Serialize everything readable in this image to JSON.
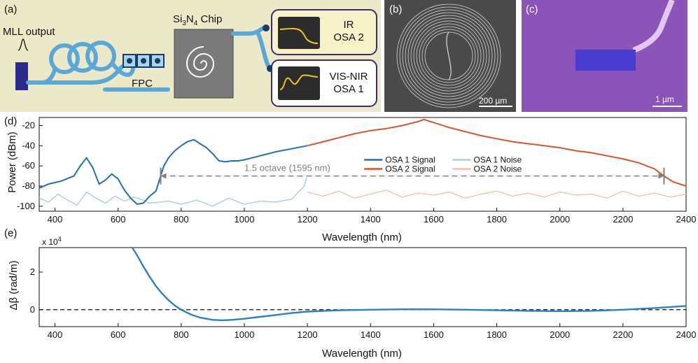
{
  "panels": {
    "a": {
      "label": "(a)",
      "mll_label": "MLL output",
      "fpc_label": "FPC",
      "chip_label_main": "Si",
      "chip_label_sub1": "3",
      "chip_label_mid": "N",
      "chip_label_sub2": "4",
      "chip_label_end": " Chip",
      "osa2_line1": "IR",
      "osa2_line2": "OSA 2",
      "osa1_line1": "VIS-NIR",
      "osa1_line2": "OSA 1"
    },
    "b": {
      "label": "(b)",
      "scalebar": "200 µm"
    },
    "c": {
      "label": "(c)",
      "scalebar": "1 µm"
    },
    "d": {
      "label": "(d)"
    },
    "e": {
      "label": "(e)"
    }
  },
  "colors": {
    "setup_bg": "#ece9c8",
    "fiber": "#5aa8d8",
    "mll_block": "#2a2a8c",
    "osa_screen": "#2c2c2c",
    "osa_trace": "#f2c21b",
    "osa2_box": "#f7f1c8",
    "osa1_box": "#ffffff",
    "box_border": "#3a2d6e",
    "sem_b_bg": "#4a4a4a",
    "sem_c_bg": "#8a54b8",
    "sem_c_block": "#4a3ed0",
    "osa1_signal": "#1f6fb4",
    "osa2_signal": "#d9542b",
    "osa1_noise": "#a9cde3",
    "osa2_noise": "#f2c0ae",
    "octave_arrow": "#808080",
    "dispersion": "#2a82c4"
  },
  "chart_data": [
    {
      "panel": "d",
      "type": "line",
      "xlabel": "Wavelength (nm)",
      "ylabel": "Power (dBm)",
      "xlim": [
        350,
        2400
      ],
      "ylim": [
        -105,
        -12
      ],
      "x_ticks": [
        400,
        600,
        800,
        1000,
        1200,
        1400,
        1600,
        1800,
        2000,
        2200,
        2400
      ],
      "y_ticks": [
        -100,
        -80,
        -60,
        -40,
        -20
      ],
      "grid": false,
      "legend_position": "center-right",
      "annotation": {
        "text": "1.5 octave (1595 nm)",
        "x_start": 735,
        "x_end": 2330,
        "y": -70
      },
      "series": [
        {
          "name": "OSA 1 Signal",
          "x": [
            350,
            380,
            420,
            460,
            480,
            500,
            520,
            540,
            560,
            580,
            600,
            620,
            640,
            660,
            680,
            700,
            720,
            735,
            745,
            760,
            780,
            800,
            820,
            840,
            860,
            880,
            900,
            920,
            940,
            960,
            980,
            1000,
            1050,
            1100,
            1150,
            1200
          ],
          "y": [
            -82,
            -78,
            -75,
            -70,
            -60,
            -52,
            -62,
            -78,
            -74,
            -68,
            -73,
            -84,
            -92,
            -98,
            -97,
            -90,
            -85,
            -70,
            -60,
            -52,
            -45,
            -40,
            -36,
            -34,
            -38,
            -42,
            -48,
            -55,
            -56,
            -55,
            -55,
            -54,
            -50,
            -46,
            -43,
            -40
          ]
        },
        {
          "name": "OSA 2 Signal",
          "x": [
            1200,
            1250,
            1300,
            1350,
            1400,
            1450,
            1500,
            1550,
            1570,
            1600,
            1650,
            1700,
            1750,
            1800,
            1850,
            1900,
            1950,
            2000,
            2050,
            2100,
            2150,
            2200,
            2250,
            2300,
            2330,
            2360,
            2400
          ],
          "y": [
            -40,
            -36,
            -32,
            -28,
            -25,
            -23,
            -20,
            -16,
            -14,
            -17,
            -22,
            -26,
            -30,
            -33,
            -36,
            -38,
            -40,
            -42,
            -45,
            -47,
            -50,
            -53,
            -57,
            -63,
            -70,
            -76,
            -80
          ]
        },
        {
          "name": "OSA 1 Noise",
          "x": [
            350,
            380,
            410,
            440,
            470,
            500,
            530,
            560,
            590,
            620,
            650,
            680,
            700,
            760,
            800,
            850,
            900,
            950,
            1000,
            1050,
            1100,
            1150,
            1190,
            1198
          ],
          "y": [
            -92,
            -96,
            -88,
            -94,
            -99,
            -86,
            -92,
            -97,
            -90,
            -95,
            -91,
            -94,
            -97,
            -95,
            -98,
            -94,
            -100,
            -92,
            -98,
            -95,
            -96,
            -93,
            -80,
            -71
          ]
        },
        {
          "name": "OSA 2 Noise",
          "x": [
            1200,
            1250,
            1300,
            1350,
            1400,
            1450,
            1500,
            1550,
            1600,
            1650,
            1700,
            1750,
            1800,
            1850,
            1900,
            1950,
            2000,
            2050,
            2100,
            2150,
            2200,
            2250,
            2300,
            2350,
            2400
          ],
          "y": [
            -86,
            -90,
            -85,
            -92,
            -88,
            -84,
            -91,
            -87,
            -89,
            -86,
            -92,
            -88,
            -85,
            -90,
            -87,
            -91,
            -86,
            -89,
            -88,
            -92,
            -85,
            -90,
            -87,
            -91,
            -88
          ]
        }
      ]
    },
    {
      "panel": "e",
      "type": "line",
      "xlabel": "Wavelength (nm)",
      "ylabel": "Δβ (rad/m)",
      "multiplier": "x 10",
      "multiplier_exp": "4",
      "xlim": [
        350,
        2400
      ],
      "ylim": [
        -0.9,
        3.3
      ],
      "x_ticks": [
        400,
        600,
        800,
        1000,
        1200,
        1400,
        1600,
        1800,
        2000,
        2200,
        2400
      ],
      "y_ticks": [
        0,
        2
      ],
      "grid": false,
      "zero_line": true,
      "series": [
        {
          "name": "",
          "x": [
            645,
            660,
            680,
            700,
            720,
            740,
            760,
            780,
            800,
            830,
            860,
            900,
            930,
            960,
            1000,
            1050,
            1100,
            1150,
            1200,
            1300,
            1400,
            1500,
            1600,
            1700,
            1800,
            1900,
            2000,
            2100,
            2200,
            2300,
            2400
          ],
          "y": [
            3.3,
            2.9,
            2.3,
            1.75,
            1.25,
            0.85,
            0.5,
            0.22,
            0.0,
            -0.25,
            -0.42,
            -0.54,
            -0.56,
            -0.54,
            -0.48,
            -0.38,
            -0.28,
            -0.18,
            -0.1,
            -0.03,
            0.0,
            0.02,
            0.02,
            0.0,
            -0.03,
            -0.06,
            -0.08,
            -0.06,
            0.0,
            0.09,
            0.2
          ]
        }
      ]
    }
  ]
}
